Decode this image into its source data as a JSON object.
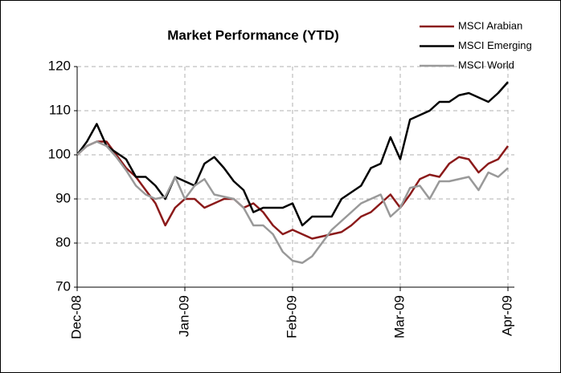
{
  "chart_data": {
    "type": "line",
    "title": "Market Performance (YTD)",
    "categories": [
      "Dec-08",
      null,
      null,
      null,
      null,
      null,
      null,
      null,
      null,
      null,
      null,
      "Jan-09",
      null,
      null,
      null,
      null,
      null,
      null,
      null,
      null,
      null,
      null,
      "Feb-09",
      null,
      null,
      null,
      null,
      null,
      null,
      null,
      null,
      null,
      null,
      "Mar-09",
      null,
      null,
      null,
      null,
      null,
      null,
      null,
      null,
      null,
      null,
      "Apr-09"
    ],
    "series": [
      {
        "name": "MSCI Arabian",
        "color": "#8b1a1a",
        "values": [
          100,
          102,
          103,
          103,
          100,
          97,
          95,
          92,
          89,
          84,
          88,
          90,
          90,
          88,
          89,
          90,
          90,
          88,
          89,
          87,
          84,
          82,
          83,
          82,
          81,
          81.5,
          82,
          82.5,
          84,
          86,
          87,
          89,
          91,
          88,
          91,
          94.5,
          95.5,
          95,
          98,
          99.5,
          99,
          96,
          98,
          99,
          102
        ]
      },
      {
        "name": "MSCI Emerging",
        "color": "#000000",
        "values": [
          100,
          103,
          107,
          102,
          100.5,
          99,
          95,
          95,
          93,
          90,
          95,
          94,
          93,
          98,
          99.5,
          97,
          94,
          92,
          87,
          88,
          88,
          88,
          89,
          84,
          86,
          86,
          86,
          90,
          91.5,
          93,
          97,
          98,
          104,
          99,
          108,
          109,
          110,
          112,
          112,
          113.5,
          114,
          113,
          112,
          114,
          116.5
        ]
      },
      {
        "name": "MSCI World",
        "color": "#999999",
        "values": [
          100,
          102,
          103,
          102,
          99.5,
          96.5,
          93,
          91,
          90,
          90.5,
          95,
          90,
          93,
          94.5,
          91,
          90.5,
          90,
          88,
          84,
          84,
          82,
          78,
          76,
          75.5,
          77,
          80,
          83,
          85,
          87,
          89,
          90,
          91,
          86,
          88,
          92.5,
          93,
          90,
          94,
          94,
          94.5,
          95,
          92,
          96,
          95,
          97
        ]
      }
    ],
    "ylim": [
      70,
      120
    ],
    "yticks": [
      70,
      80,
      90,
      100,
      110,
      120
    ],
    "grid": true,
    "legend": "upper right"
  }
}
